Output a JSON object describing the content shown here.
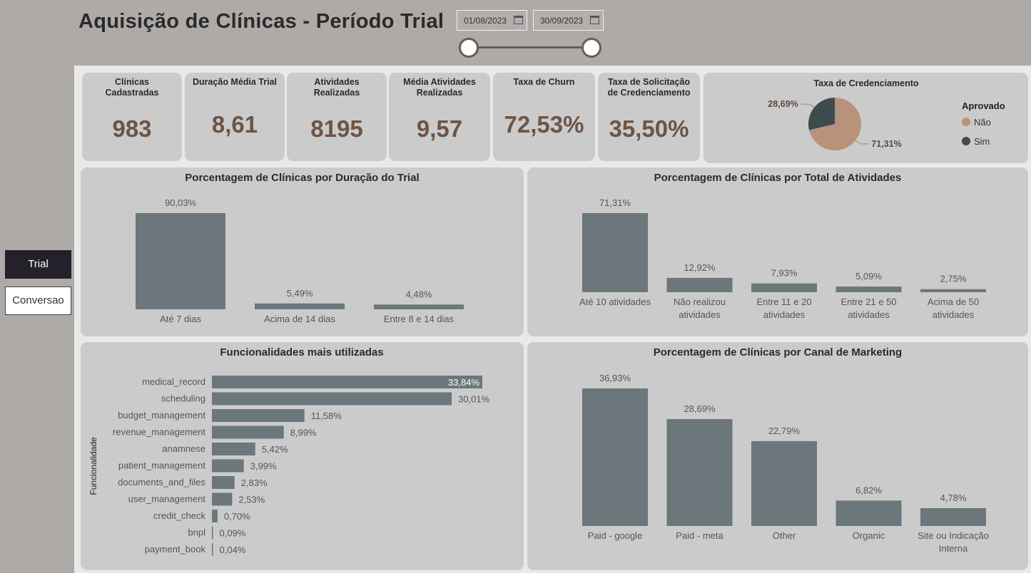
{
  "header": {
    "title": "Aquisição de Clínicas - Período Trial",
    "date_start": "01/08/2023",
    "date_end": "30/09/2023"
  },
  "nav": {
    "trial_label": "Trial",
    "conversao_label": "Conversao"
  },
  "kpis": [
    {
      "title": "Clínicas Cadastradas",
      "value": "983"
    },
    {
      "title": "Duração Média Trial",
      "value": "8,61"
    },
    {
      "title": "Atividades Realizadas",
      "value": "8195"
    },
    {
      "title": "Média Atividades Realizadas",
      "value": "9,57"
    },
    {
      "title": "Taxa de Churn",
      "value": "72,53%"
    },
    {
      "title": "Taxa de Solicitação de Credenciamento",
      "value": "35,50%"
    }
  ],
  "colors": {
    "bar": "#6b777a",
    "pie_nao": "#b8927a",
    "pie_sim": "#3f4a4d",
    "kpi_value": "#6b5546",
    "accent_brown": "#6e5a4e"
  },
  "chart_data": [
    {
      "id": "credenciamento",
      "type": "pie",
      "title": "Taxa de Credenciamento",
      "legend_title": "Aprovado",
      "legend_position": "right",
      "categories": [
        "Não",
        "Sim"
      ],
      "values": [
        71.31,
        28.69
      ],
      "labels": [
        "71,31%",
        "28,69%"
      ]
    },
    {
      "id": "duracao",
      "type": "bar",
      "title": "Porcentagem de Clínicas por Duração do Trial",
      "categories": [
        "Até 7 dias",
        "Acima de 14 dias",
        "Entre 8 e 14 dias"
      ],
      "values": [
        90.03,
        5.49,
        4.48
      ],
      "labels": [
        "90,03%",
        "5,49%",
        "4,48%"
      ],
      "ylim": [
        0,
        90.03
      ]
    },
    {
      "id": "atividades",
      "type": "bar",
      "title": "Porcentagem de Clínicas por Total de Atividades",
      "categories": [
        [
          "Até 10 atividades"
        ],
        [
          "Não realizou",
          "atividades"
        ],
        [
          "Entre 11 e 20",
          "atividades"
        ],
        [
          "Entre 21 e 50",
          "atividades"
        ],
        [
          "Acima de 50",
          "atividades"
        ]
      ],
      "values": [
        71.31,
        12.92,
        7.93,
        5.09,
        2.75
      ],
      "labels": [
        "71,31%",
        "12,92%",
        "7,93%",
        "5,09%",
        "2,75%"
      ],
      "ylim": [
        0,
        71.31
      ]
    },
    {
      "id": "funcionalidades",
      "type": "bar",
      "orientation": "horizontal",
      "title": "Funcionalidades mais utilizadas",
      "ylabel": "Funcionalidade",
      "categories": [
        "medical_record",
        "scheduling",
        "budget_management",
        "revenue_management",
        "anamnese",
        "patient_management",
        "documents_and_files",
        "user_management",
        "credit_check",
        "bnpl",
        "payment_book"
      ],
      "values": [
        33.84,
        30.01,
        11.58,
        8.99,
        5.42,
        3.99,
        2.83,
        2.53,
        0.7,
        0.09,
        0.04
      ],
      "labels": [
        "33,84%",
        "30,01%",
        "11,58%",
        "8,99%",
        "5,42%",
        "3,99%",
        "2,83%",
        "2,53%",
        "0,70%",
        "0,09%",
        "0,04%"
      ],
      "xlim": [
        0,
        33.84
      ]
    },
    {
      "id": "marketing",
      "type": "bar",
      "title": "Porcentagem de Clínicas por Canal de Marketing",
      "categories": [
        [
          "Paid - google"
        ],
        [
          "Paid - meta"
        ],
        [
          "Other"
        ],
        [
          "Organic"
        ],
        [
          "Site ou Indicação",
          "Interna"
        ]
      ],
      "values": [
        36.93,
        28.69,
        22.79,
        6.82,
        4.78
      ],
      "labels": [
        "36,93%",
        "28,69%",
        "22,79%",
        "6,82%",
        "4,78%"
      ],
      "ylim": [
        0,
        36.93
      ]
    }
  ]
}
